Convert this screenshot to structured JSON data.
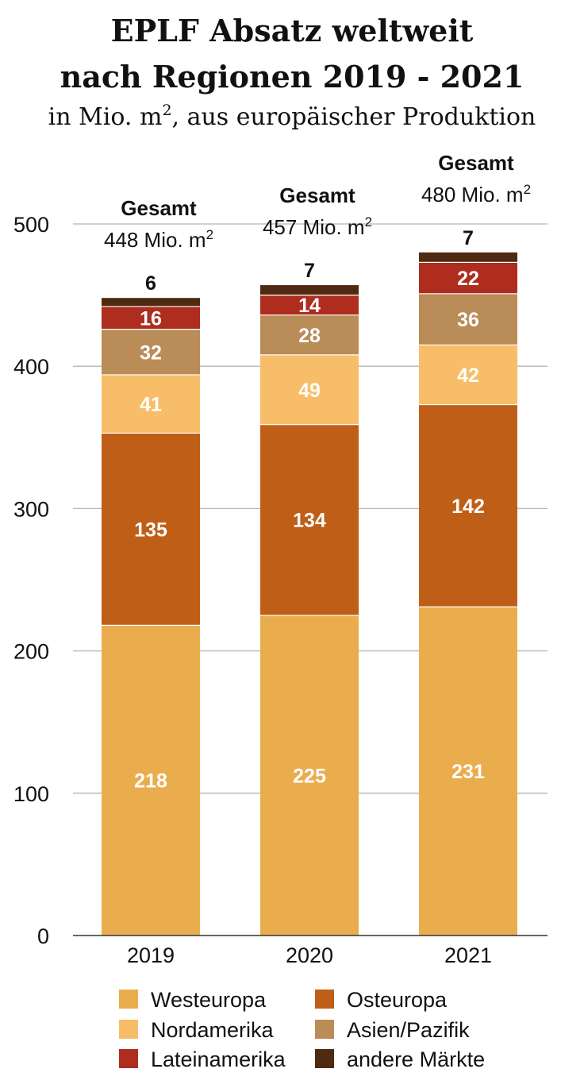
{
  "chart_data": {
    "type": "bar",
    "stacked": true,
    "title_line1": "EPLF Absatz weltweit",
    "title_line2": "nach Regionen 2019 -  2021",
    "subtitle_main": "in Mio. m",
    "subtitle_sup": "2",
    "subtitle_rest": ", aus europäischer Produktion",
    "categories": [
      "2019",
      "2020",
      "2021"
    ],
    "ylim": [
      0,
      500
    ],
    "yticks": [
      0,
      100,
      200,
      300,
      400,
      500
    ],
    "grid": true,
    "legend_position": "bottom",
    "series": [
      {
        "name": "Westeuropa",
        "color": "#EAAD4E",
        "values": [
          218,
          225,
          231
        ]
      },
      {
        "name": "Osteuropa",
        "color": "#BF5F17",
        "values": [
          135,
          134,
          142
        ]
      },
      {
        "name": "Nordamerika",
        "color": "#F8BD68",
        "values": [
          41,
          49,
          42
        ]
      },
      {
        "name": "Asien/Pazifik",
        "color": "#B98C58",
        "values": [
          32,
          28,
          36
        ]
      },
      {
        "name": "Lateinamerika",
        "color": "#AE2D1F",
        "values": [
          16,
          14,
          22
        ]
      },
      {
        "name": "andere Märkte",
        "color": "#4E2A10",
        "values": [
          6,
          7,
          7
        ]
      }
    ],
    "totals": [
      {
        "head": "Gesamt",
        "value": "448 Mio. m",
        "sup": "2"
      },
      {
        "head": "Gesamt",
        "value": "457 Mio. m",
        "sup": "2"
      },
      {
        "head": "Gesamt",
        "value": "480 Mio. m",
        "sup": "2"
      }
    ]
  }
}
